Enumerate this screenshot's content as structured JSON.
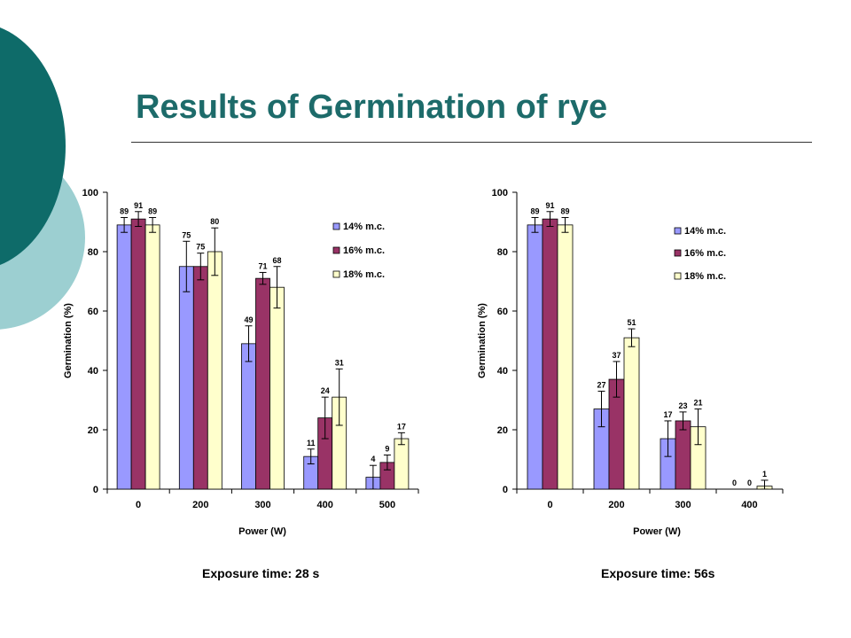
{
  "page": {
    "title": "Results of Germination of rye"
  },
  "colors": {
    "title": "#1d6b6a",
    "deco_dark": "#0e6b69",
    "deco_light": "#9ccfd1",
    "series": [
      "#9999ff",
      "#993366",
      "#ffffcc"
    ]
  },
  "chart_data": [
    {
      "type": "bar",
      "caption": "Exposure time: 28 s",
      "xlabel": "Power (W)",
      "ylabel": "Germination (%)",
      "ylim": [
        0,
        100
      ],
      "yticks": [
        0,
        20,
        40,
        60,
        80,
        100
      ],
      "grid": false,
      "legend_position": "top-right",
      "categories": [
        "0",
        "200",
        "300",
        "400",
        "500"
      ],
      "series": [
        {
          "name": "14% m.c.",
          "values": [
            89,
            75,
            49,
            11,
            4
          ],
          "errors": [
            2.5,
            8.5,
            6,
            2.5,
            4
          ]
        },
        {
          "name": "16% m.c.",
          "values": [
            91,
            75,
            71,
            24,
            9
          ],
          "errors": [
            2.5,
            4.5,
            2,
            7,
            2.5
          ]
        },
        {
          "name": "18% m.c.",
          "values": [
            89,
            80,
            68,
            31,
            17
          ],
          "errors": [
            2.5,
            8,
            7,
            9.5,
            2
          ]
        }
      ],
      "data_labels": [
        [
          "89",
          "75",
          "49",
          "11",
          "4"
        ],
        [
          "91",
          "75",
          "71",
          "24",
          "9"
        ],
        [
          "89",
          "80",
          "68",
          "31",
          "17"
        ]
      ]
    },
    {
      "type": "bar",
      "caption": "Exposure time: 56s",
      "xlabel": "Power (W)",
      "ylabel": "Germination (%)",
      "ylim": [
        0,
        100
      ],
      "yticks": [
        0,
        20,
        40,
        60,
        80,
        100
      ],
      "grid": false,
      "legend_position": "top-right",
      "categories": [
        "0",
        "200",
        "300",
        "400"
      ],
      "series": [
        {
          "name": "14% m.c.",
          "values": [
            89,
            27,
            17,
            0
          ],
          "errors": [
            2.5,
            6,
            6,
            0
          ]
        },
        {
          "name": "16% m.c.",
          "values": [
            91,
            37,
            23,
            0
          ],
          "errors": [
            2.5,
            6,
            3,
            0
          ]
        },
        {
          "name": "18% m.c.",
          "values": [
            89,
            51,
            21,
            1
          ],
          "errors": [
            2.5,
            3,
            6,
            2
          ]
        }
      ],
      "data_labels": [
        [
          "89",
          "27",
          "17",
          "0"
        ],
        [
          "91",
          "37",
          "23",
          "0"
        ],
        [
          "89",
          "51",
          "21",
          "1"
        ]
      ]
    }
  ]
}
